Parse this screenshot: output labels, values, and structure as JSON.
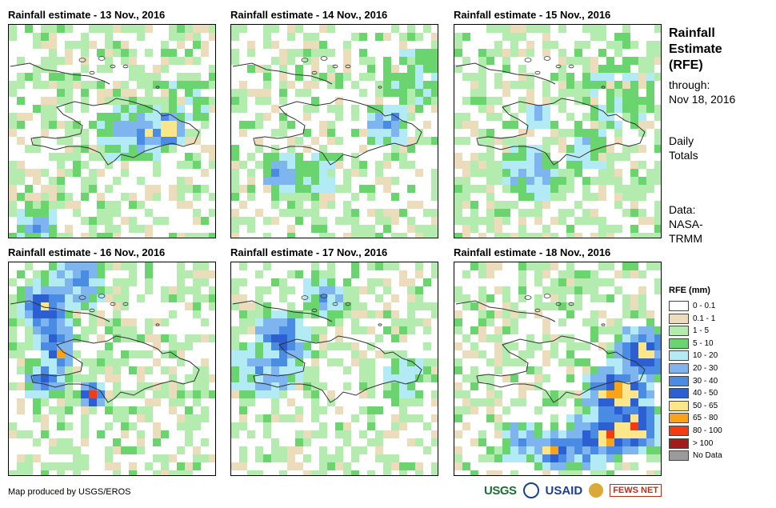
{
  "panels": [
    {
      "title": "Rainfall estimate - 13 Nov., 2016"
    },
    {
      "title": "Rainfall estimate - 14 Nov., 2016"
    },
    {
      "title": "Rainfall estimate - 15 Nov., 2016"
    },
    {
      "title": "Rainfall estimate - 16 Nov., 2016"
    },
    {
      "title": "Rainfall estimate - 17 Nov., 2016"
    },
    {
      "title": "Rainfall estimate - 18 Nov., 2016"
    }
  ],
  "sidebar": {
    "heading": [
      "Rainfall",
      "Estimate",
      "(RFE)"
    ],
    "through_label": "through:",
    "through_date": "Nov 18, 2016",
    "totals": [
      "Daily",
      "Totals"
    ],
    "source": [
      "Data:",
      "NASA-",
      "TRMM"
    ]
  },
  "legend": {
    "title": "RFE (mm)",
    "items": [
      {
        "label": "0 - 0.1",
        "color": "#ffffff"
      },
      {
        "label": "0.1 - 1",
        "color": "#ebdcbb"
      },
      {
        "label": "1 - 5",
        "color": "#b4ecb0"
      },
      {
        "label": "5 - 10",
        "color": "#6ad46e"
      },
      {
        "label": "10 - 20",
        "color": "#b2ebf5"
      },
      {
        "label": "20 - 30",
        "color": "#7fb5ef"
      },
      {
        "label": "30 - 40",
        "color": "#4a8be3"
      },
      {
        "label": "40 - 50",
        "color": "#2b5fd2"
      },
      {
        "label": "50 - 65",
        "color": "#fce68a"
      },
      {
        "label": "65 - 80",
        "color": "#f9a316"
      },
      {
        "label": "80 - 100",
        "color": "#f43b12"
      },
      {
        "label": "> 100",
        "color": "#a51a1a"
      },
      {
        "label": "No Data",
        "color": "#9a9a9a"
      }
    ]
  },
  "footer": {
    "credit": "Map produced by USGS/EROS",
    "logos": [
      "USGS",
      "USAID",
      "FEWS NET"
    ]
  }
}
